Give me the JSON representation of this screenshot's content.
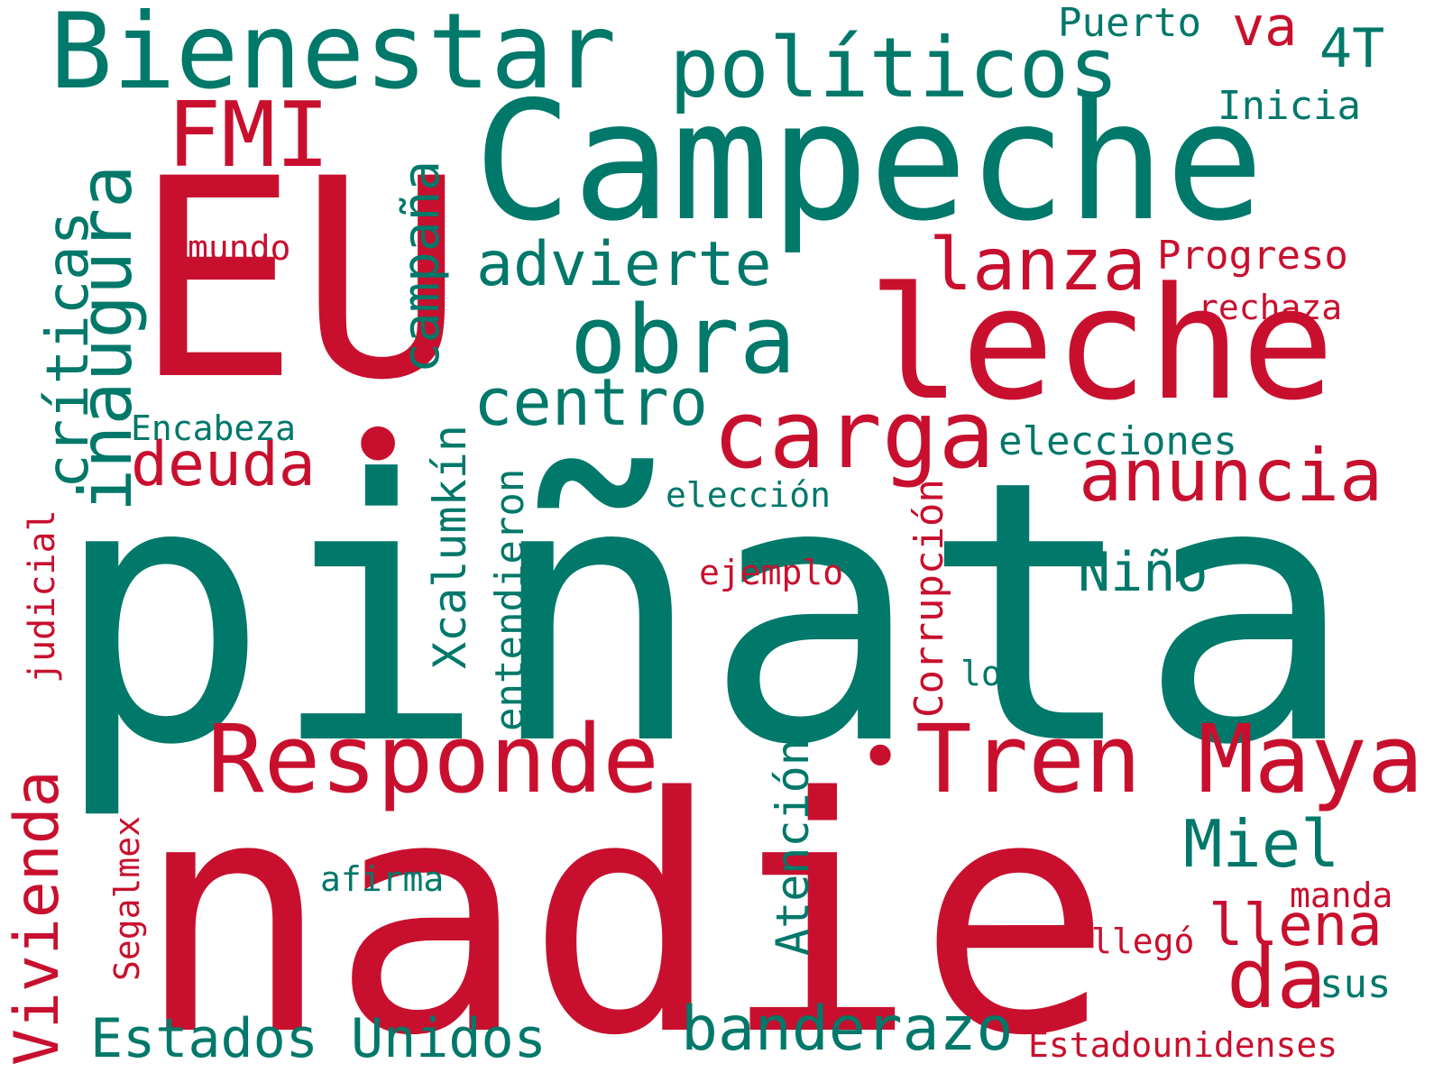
{
  "colors": {
    "green": "#00786a",
    "red": "#c8102e",
    "background": "#ffffff"
  },
  "words": {
    "pinata": "piñata",
    "nadie": "nadie",
    "eu": "EU",
    "campeche": "Campeche",
    "leche": "leche",
    "bienestar": "Bienestar",
    "politicos": "políticos",
    "tren_maya": "Tren Maya",
    "responde": "Responde",
    "obra": "obra",
    "carga": "carga",
    "fmi": "FMI",
    "inaugura": "inaugura",
    "criticas": "críticas",
    "campana": "campaña",
    "anuncia": "anuncia",
    "lanza": "lanza",
    "advierte": "advierte",
    "centro": "centro",
    "deuda": "deuda",
    "da": "da",
    "miel": "Miel",
    "llena": "llena",
    "banderazo": "banderazo",
    "estados_unidos": "Estados Unidos",
    "vivienda": "Vivienda",
    "nino": "Niño",
    "va": "va",
    "t4": "4T",
    "puerto": "Puerto",
    "inicia": "Inicia",
    "progreso": "Progreso",
    "rechaza": "rechaza",
    "mundo": "mundo",
    "encabeza": "Encabeza",
    "elecciones": "elecciones",
    "eleccion": "elección",
    "ejemplo": "ejemplo",
    "xcalumkin": "Xcalumkín",
    "entendieron": "entendieron",
    "corrupcion": "Corrupción",
    "lo": "lo",
    "judicial": "judicial",
    "atencion": "Atención",
    "segalmex": "Segalmex",
    "afirma": "afirma",
    "llego": "llegó",
    "manda": "manda",
    "sus": "sus",
    "estadounidenses": "Estadounidenses",
    "dot_eu": "•",
    "dot_tren": "•"
  }
}
